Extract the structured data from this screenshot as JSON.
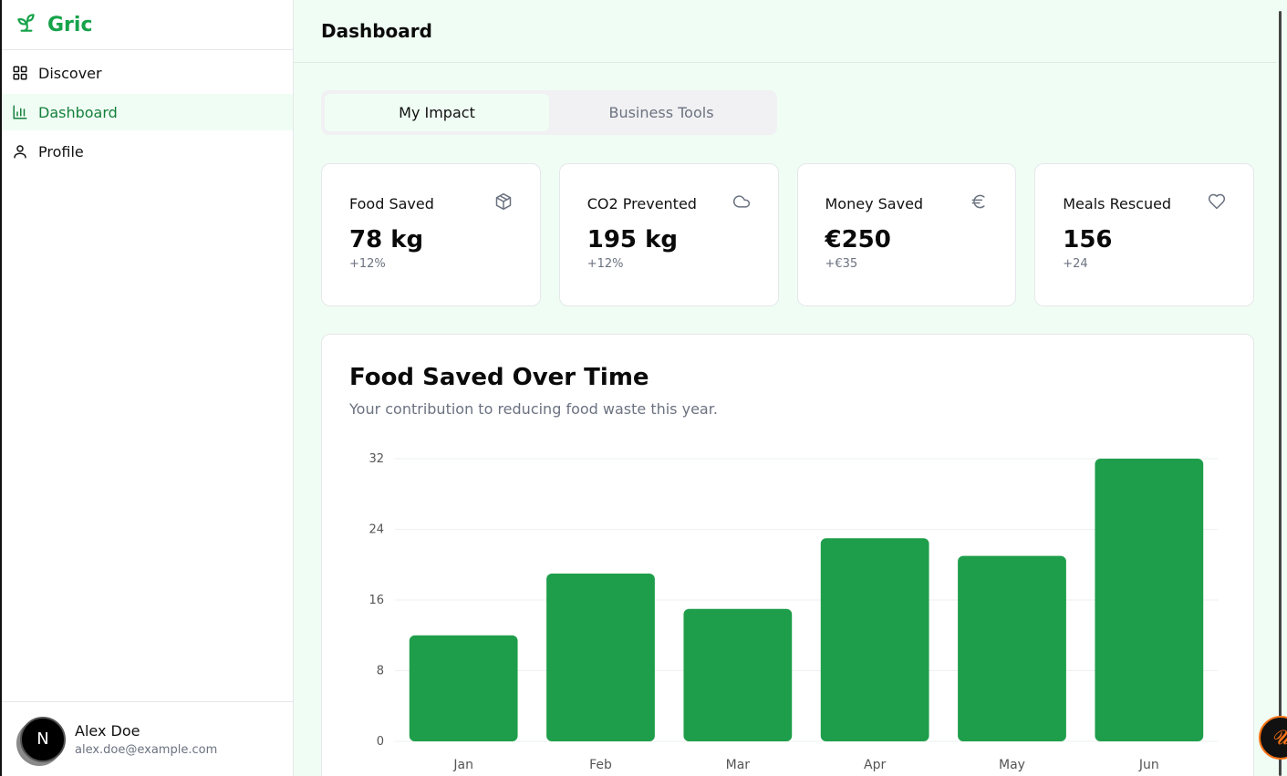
{
  "app": {
    "name": "Gric"
  },
  "sidebar": {
    "items": [
      {
        "label": "Discover",
        "icon": "grid-icon"
      },
      {
        "label": "Dashboard",
        "icon": "bar-chart-icon",
        "active": true
      },
      {
        "label": "Profile",
        "icon": "user-icon"
      }
    ],
    "user": {
      "initial": "N",
      "name": "Alex Doe",
      "email": "alex.doe@example.com"
    }
  },
  "header": {
    "title": "Dashboard"
  },
  "tabs": [
    {
      "label": "My Impact",
      "active": true
    },
    {
      "label": "Business Tools",
      "active": false
    }
  ],
  "stats": [
    {
      "label": "Food Saved",
      "value": "78 kg",
      "delta": "+12%",
      "icon": "box-icon"
    },
    {
      "label": "CO2 Prevented",
      "value": "195 kg",
      "delta": "+12%",
      "icon": "cloud-icon"
    },
    {
      "label": "Money Saved",
      "value": "€250",
      "delta": "+€35",
      "icon": "euro-icon"
    },
    {
      "label": "Meals Rescued",
      "value": "156",
      "delta": "+24",
      "icon": "heart-icon"
    }
  ],
  "chart": {
    "title": "Food Saved Over Time",
    "subtitle": "Your contribution to reducing food waste this year."
  },
  "chart_data": {
    "type": "bar",
    "title": "Food Saved Over Time",
    "categories": [
      "Jan",
      "Feb",
      "Mar",
      "Apr",
      "May",
      "Jun"
    ],
    "values": [
      12,
      19,
      15,
      23,
      21,
      32
    ],
    "ylim": [
      0,
      32
    ],
    "yticks": [
      0,
      8,
      16,
      24,
      32
    ],
    "grid": true,
    "color": "#1e9e4a"
  },
  "colors": {
    "accent": "#16a34a",
    "bar": "#1e9e4a"
  }
}
